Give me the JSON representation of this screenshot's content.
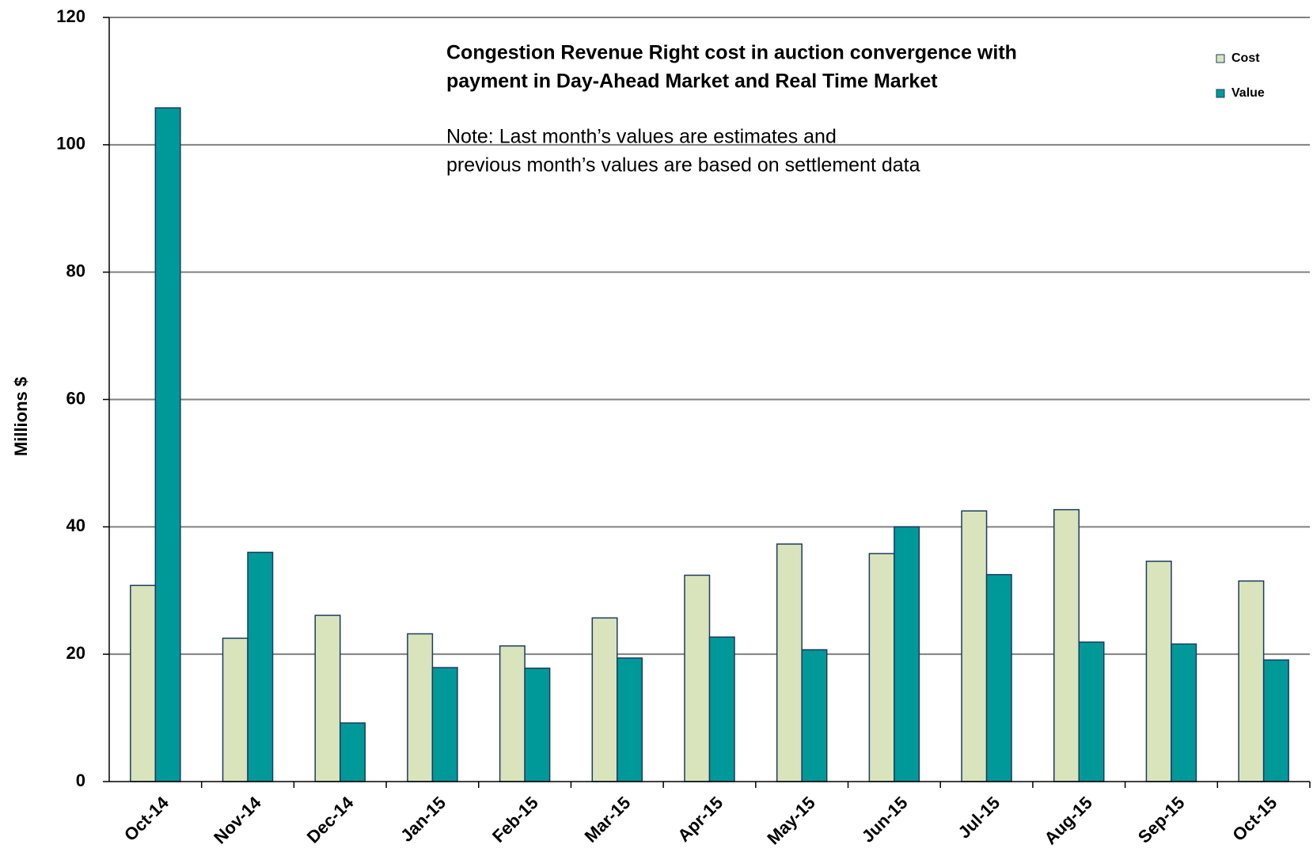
{
  "chart_data": {
    "type": "bar",
    "title": [
      "Congestion Revenue Right cost in auction convergence with",
      "payment in Day-Ahead Market and Real Time Market"
    ],
    "annotation": [
      "Note: Last month’s values are estimates and",
      "previous month’s values are based on settlement data"
    ],
    "y_label": "Millions $",
    "categories": [
      "Oct-14",
      "Nov-14",
      "Dec-14",
      "Jan-15",
      "Feb-15",
      "Mar-15",
      "Apr-15",
      "May-15",
      "Jun-15",
      "Jul-15",
      "Aug-15",
      "Sep-15",
      "Oct-15"
    ],
    "series": [
      {
        "name": "Cost",
        "color": "#d9e4bc",
        "values": [
          30.8,
          22.5,
          26.1,
          23.2,
          21.3,
          25.7,
          32.4,
          37.3,
          35.8,
          42.5,
          42.7,
          34.6,
          31.5
        ]
      },
      {
        "name": "Value",
        "color": "#009999",
        "values": [
          105.8,
          36.0,
          9.2,
          17.9,
          17.8,
          19.4,
          22.7,
          20.7,
          40.0,
          32.5,
          21.9,
          21.6,
          19.1
        ]
      }
    ],
    "ylim": [
      0,
      120
    ],
    "yticks": [
      0,
      20,
      40,
      60,
      80,
      100,
      120
    ],
    "grid": true,
    "legend": "top-right"
  }
}
